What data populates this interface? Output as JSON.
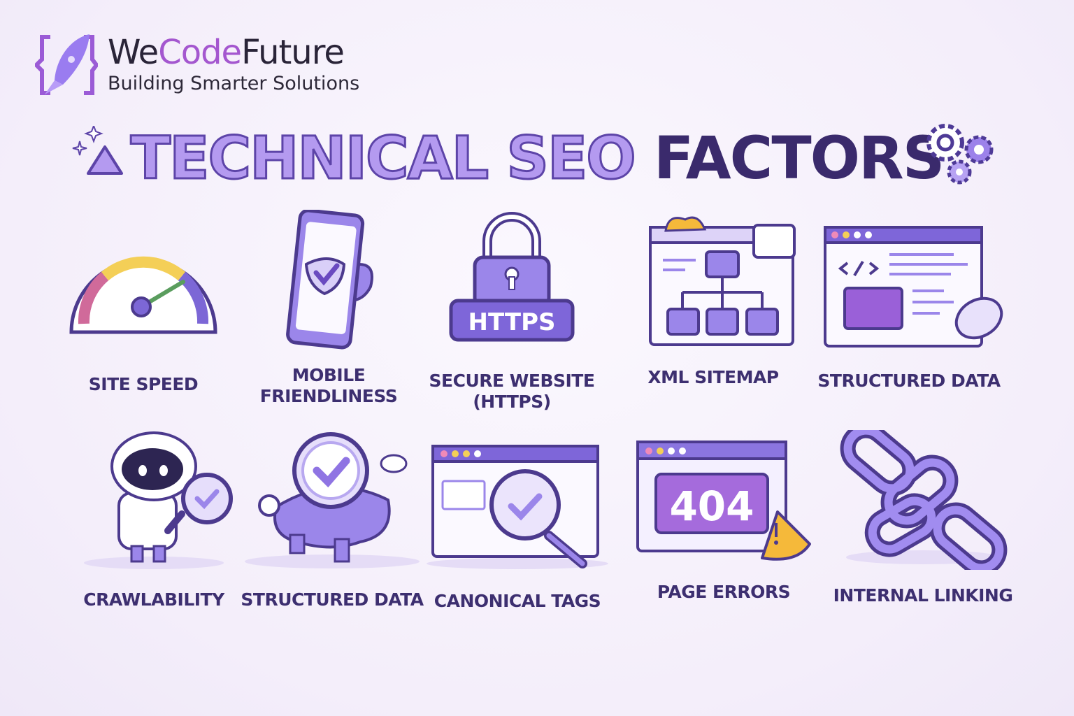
{
  "brand": {
    "name_part1": "We",
    "name_part2": "Code",
    "name_part3": "Future",
    "tagline": "Building Smarter Solutions"
  },
  "title": {
    "part_light": "TECHNICAL SEO",
    "part_dark": "FACTORS"
  },
  "colors": {
    "background": "#f6f1fb",
    "accent_light": "#b49af0",
    "accent_dark": "#3a2a6c",
    "brand_code": "#a457cf",
    "warning": "#f5b93a"
  },
  "factors_row1": [
    {
      "label": "SITE SPEED",
      "icon": "speedometer-icon"
    },
    {
      "label_line1": "MOBILE",
      "label_line2": "FRIENDLINESS",
      "icon": "smartphone-check-icon"
    },
    {
      "label_line1": "SECURE WEBSITE",
      "label_line2": "(HTTPS)",
      "icon": "padlock-https-icon",
      "badge": "HTTPS"
    },
    {
      "label": "XML SITEMAP",
      "icon": "sitemap-icon"
    },
    {
      "label": "STRUCTURED DATA",
      "icon": "code-browser-icon"
    }
  ],
  "factors_row2": [
    {
      "label": "CRAWLABILITY",
      "icon": "robot-magnifier-icon"
    },
    {
      "label": "STRUCTURED DATA",
      "icon": "robot-check-icon"
    },
    {
      "label": "CANONICAL TAGS",
      "icon": "browser-magnifier-icon"
    },
    {
      "label": "PAGE ERRORS",
      "icon": "error-404-icon",
      "code": "404"
    },
    {
      "label": "INTERNAL LINKING",
      "icon": "chain-link-icon"
    }
  ]
}
